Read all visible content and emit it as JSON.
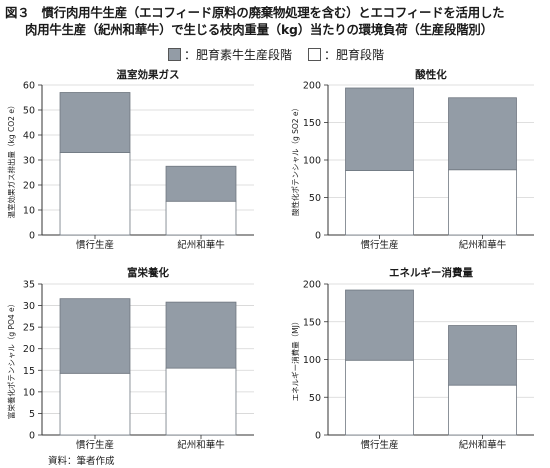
{
  "header": {
    "title_line1": "図３　慣行肉用牛生産（エコフィード原料の廃棄物処理を含む）とエコフィードを活用した",
    "title_line2": "肉用牛生産（紀州和華牛）で生じる枝肉重量（kg）当たりの環境負荷（生産段階別）"
  },
  "legend": {
    "items": [
      {
        "label": "：肥育素牛生産段階",
        "color": "#939ca6"
      },
      {
        "label": "：肥育段階",
        "color": "#ffffff"
      }
    ]
  },
  "source": "資料：筆者作成",
  "colors": {
    "upper": "#939ca6",
    "lower": "#ffffff",
    "axis": "#333333",
    "grid": "#d4d4d4"
  },
  "chart_data": [
    {
      "type": "bar",
      "stacked": true,
      "title": "温室効果ガス",
      "ylabel": "温室効果ガス排出量（kg CO2 e）",
      "ylim": [
        0,
        60
      ],
      "yticks": [
        0,
        10,
        20,
        30,
        40,
        50,
        60
      ],
      "categories": [
        "慣行生産",
        "紀州和華牛"
      ],
      "series": [
        {
          "name": "肥育段階",
          "values": [
            33,
            13.5
          ]
        },
        {
          "name": "肥育素牛生産段階",
          "values": [
            24,
            14
          ]
        }
      ],
      "grid": true
    },
    {
      "type": "bar",
      "stacked": true,
      "title": "酸性化",
      "ylabel": "酸性化ポテンシャル（g SO2 e）",
      "ylim": [
        0,
        200
      ],
      "yticks": [
        0,
        50,
        100,
        150,
        200
      ],
      "categories": [
        "慣行生産",
        "紀州和華牛"
      ],
      "series": [
        {
          "name": "肥育段階",
          "values": [
            86,
            87
          ]
        },
        {
          "name": "肥育素牛生産段階",
          "values": [
            110,
            96
          ]
        }
      ],
      "grid": true
    },
    {
      "type": "bar",
      "stacked": true,
      "title": "富栄養化",
      "ylabel": "富栄養化ポテンシャル（g PO4 e）",
      "ylim": [
        0,
        35
      ],
      "yticks": [
        0,
        5,
        10,
        15,
        20,
        25,
        30,
        35
      ],
      "categories": [
        "慣行生産",
        "紀州和華牛"
      ],
      "series": [
        {
          "name": "肥育段階",
          "values": [
            14.3,
            15.5
          ]
        },
        {
          "name": "肥育素牛生産段階",
          "values": [
            17.3,
            15.3
          ]
        }
      ],
      "grid": true
    },
    {
      "type": "bar",
      "stacked": true,
      "title": "エネルギー消費量",
      "ylabel": "エネルギー消費量（MJ）",
      "ylim": [
        0,
        200
      ],
      "yticks": [
        0,
        50,
        100,
        150,
        200
      ],
      "categories": [
        "慣行生産",
        "紀州和華牛"
      ],
      "series": [
        {
          "name": "肥育段階",
          "values": [
            99,
            66
          ]
        },
        {
          "name": "肥育素牛生産段階",
          "values": [
            93,
            79
          ]
        }
      ],
      "grid": true
    }
  ]
}
